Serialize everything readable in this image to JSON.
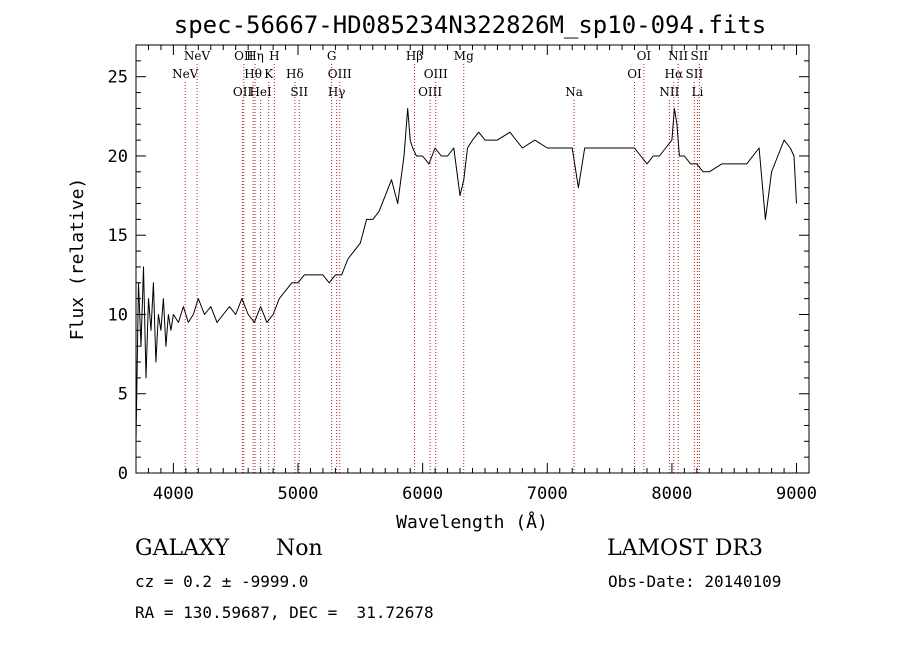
{
  "chart_data": {
    "type": "line",
    "title": "spec-56667-HD085234N322826M_sp10-094.fits",
    "xlabel": "Wavelength (Å)",
    "ylabel": "Flux (relative)",
    "xlim": [
      3700,
      9100
    ],
    "ylim": [
      0,
      27
    ],
    "xticks": [
      4000,
      5000,
      6000,
      7000,
      8000,
      9000
    ],
    "yticks": [
      0,
      5,
      10,
      15,
      20,
      25
    ],
    "grid": false,
    "line_color": "#000000",
    "marker_color": "#b22222",
    "series": [
      {
        "x": [
          3700,
          3720,
          3740,
          3760,
          3780,
          3800,
          3820,
          3840,
          3860,
          3880,
          3900,
          3920,
          3940,
          3960,
          3980,
          4000,
          4040,
          4080,
          4120,
          4160,
          4200,
          4250,
          4300,
          4350,
          4400,
          4450,
          4500,
          4550,
          4600,
          4650,
          4700,
          4750,
          4800,
          4850,
          4900,
          4950,
          5000,
          5050,
          5100,
          5150,
          5200,
          5250,
          5300,
          5350,
          5400,
          5450,
          5500,
          5550,
          5600,
          5650,
          5700,
          5750,
          5800,
          5850,
          5880,
          5900,
          5920,
          5950,
          6000,
          6050,
          6100,
          6150,
          6200,
          6250,
          6300,
          6330,
          6360,
          6400,
          6450,
          6500,
          6600,
          6700,
          6800,
          6900,
          7000,
          7100,
          7200,
          7250,
          7300,
          7400,
          7500,
          7600,
          7700,
          7750,
          7800,
          7850,
          7900,
          7950,
          8000,
          8020,
          8040,
          8060,
          8100,
          8150,
          8200,
          8250,
          8300,
          8400,
          8500,
          8600,
          8700,
          8750,
          8800,
          8850,
          8900,
          8950,
          8980,
          9000
        ],
        "y": [
          2,
          12,
          8,
          13,
          6,
          11,
          9,
          12,
          7,
          10,
          9,
          11,
          8,
          10,
          9,
          10,
          9.5,
          10.5,
          9.5,
          10,
          11,
          10,
          10.5,
          9.5,
          10,
          10.5,
          10,
          11,
          10,
          9.5,
          10.5,
          9.5,
          10,
          11,
          11.5,
          12,
          12,
          12.5,
          12.5,
          12.5,
          12.5,
          12,
          12.5,
          12.5,
          13.5,
          14,
          14.5,
          16,
          16,
          16.5,
          17.5,
          18.5,
          17,
          20,
          23,
          21,
          20.5,
          20,
          20,
          19.5,
          20.5,
          20,
          20,
          20.5,
          17.5,
          18.5,
          20.5,
          21,
          21.5,
          21,
          21,
          21.5,
          20.5,
          21,
          20.5,
          20.5,
          20.5,
          18,
          20.5,
          20.5,
          20.5,
          20.5,
          20.5,
          20,
          19.5,
          20,
          20,
          20.5,
          21,
          23,
          22,
          20,
          20,
          19.5,
          19.5,
          19,
          19,
          19.5,
          19.5,
          19.5,
          20.5,
          16,
          19,
          20,
          21,
          20.5,
          20,
          17
        ]
      }
    ],
    "lines": [
      {
        "label": "NeV",
        "x": 4095,
        "row": 1
      },
      {
        "label": "NeV",
        "x": 4190,
        "row": 0
      },
      {
        "label": "OII",
        "x": 4555,
        "row": 2
      },
      {
        "label": "OII",
        "x": 4565,
        "row": 0
      },
      {
        "label": "Hθ",
        "x": 4640,
        "row": 1
      },
      {
        "label": "Hη",
        "x": 4655,
        "row": 0
      },
      {
        "label": "HeI",
        "x": 4700,
        "row": 2
      },
      {
        "label": "K",
        "x": 4765,
        "row": 1
      },
      {
        "label": "H",
        "x": 4810,
        "row": 0
      },
      {
        "label": "Hδ",
        "x": 4975,
        "row": 1
      },
      {
        "label": "SII",
        "x": 5010,
        "row": 2
      },
      {
        "label": "G",
        "x": 5270,
        "row": 0
      },
      {
        "label": "Hγ",
        "x": 5310,
        "row": 2
      },
      {
        "label": "OIII",
        "x": 5335,
        "row": 1
      },
      {
        "label": "Hβ",
        "x": 5935,
        "row": 0
      },
      {
        "label": "OIII",
        "x": 6060,
        "row": 2
      },
      {
        "label": "OIII",
        "x": 6105,
        "row": 1
      },
      {
        "label": "Mg",
        "x": 6330,
        "row": 0
      },
      {
        "label": "Na",
        "x": 7215,
        "row": 2
      },
      {
        "label": "OI",
        "x": 7700,
        "row": 1
      },
      {
        "label": "OI",
        "x": 7775,
        "row": 0
      },
      {
        "label": "NII",
        "x": 7980,
        "row": 2
      },
      {
        "label": "Hα",
        "x": 8015,
        "row": 1
      },
      {
        "label": "NII",
        "x": 8050,
        "row": 0
      },
      {
        "label": "SII",
        "x": 8180,
        "row": 1
      },
      {
        "label": "Li",
        "x": 8205,
        "row": 2
      },
      {
        "label": "SII",
        "x": 8220,
        "row": 0
      }
    ]
  },
  "info": {
    "class": "GALAXY",
    "subclass": "Non",
    "survey": "LAMOST DR3",
    "cz": "cz = 0.2 ± -9999.0",
    "obs_date": "Obs-Date: 20140109",
    "coords": "RA = 130.59687, DEC =  31.72678"
  }
}
